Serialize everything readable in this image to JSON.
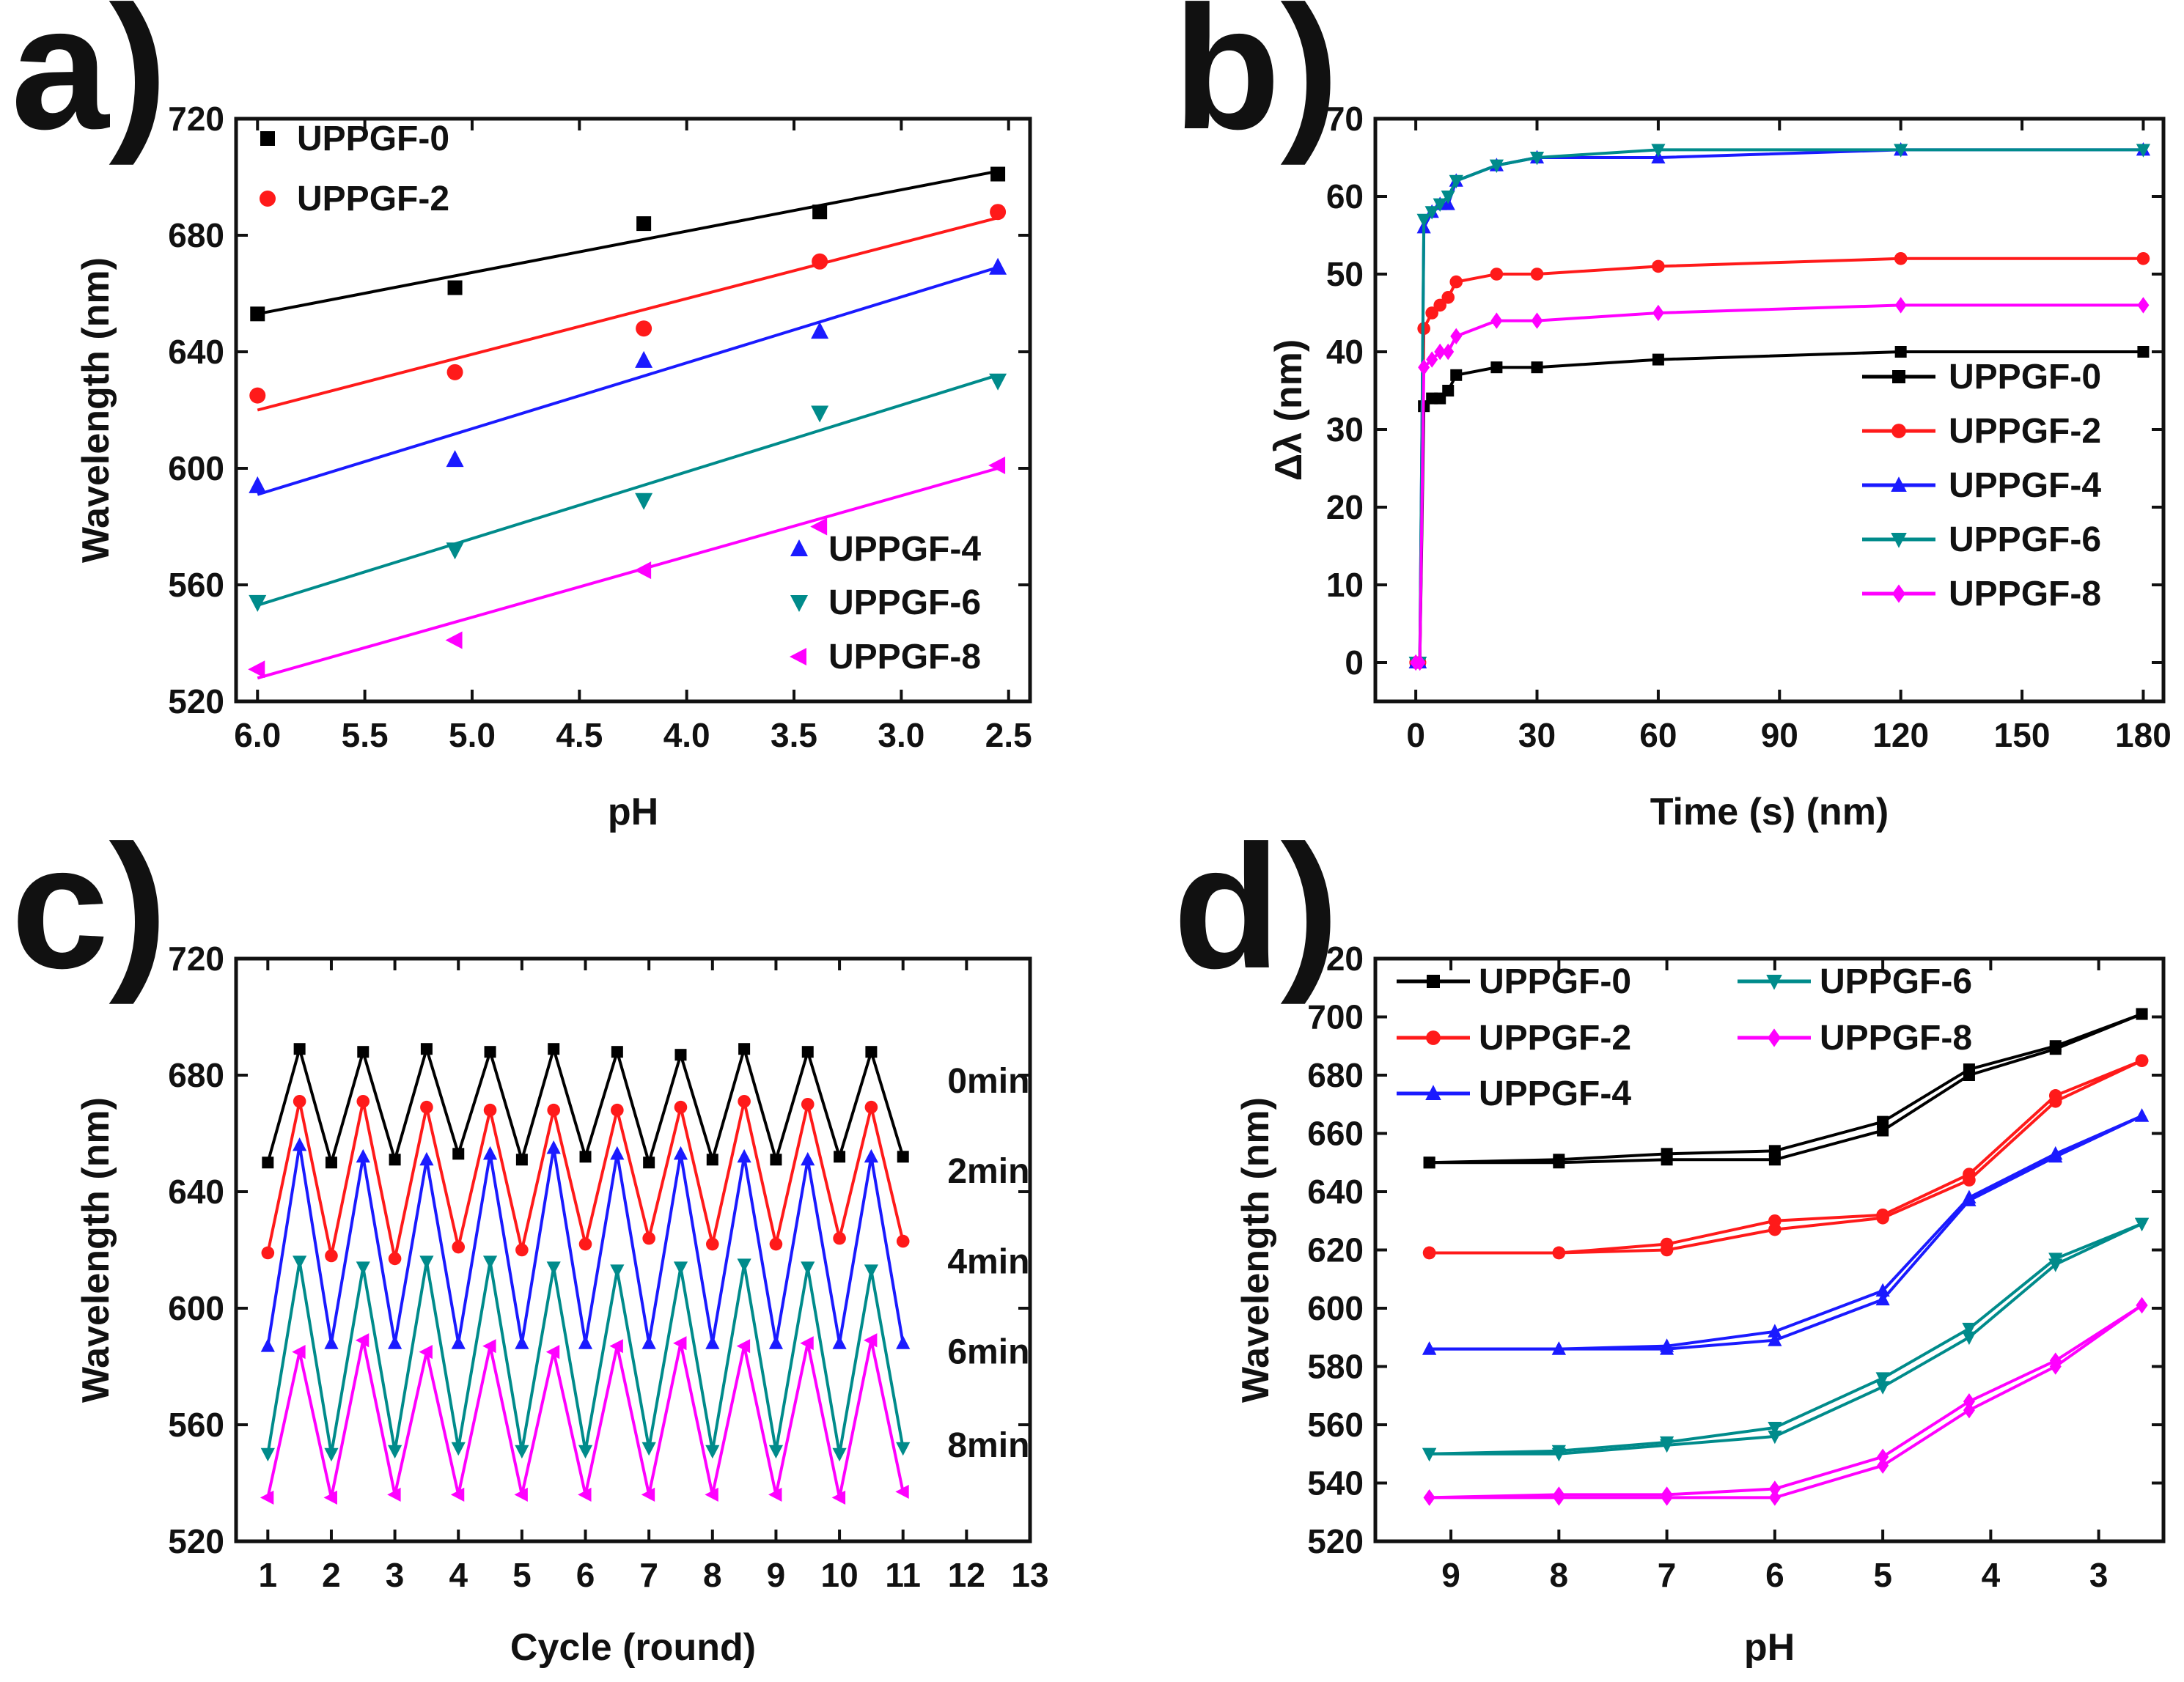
{
  "colors": {
    "UPPGF-0": "#000000",
    "UPPGF-2": "#ff1a1a",
    "UPPGF-4": "#1a1aff",
    "UPPGF-6": "#008b8b",
    "UPPGF-8": "#ff00ff"
  },
  "chart_data": [
    {
      "id": "a",
      "panel_label": "a)",
      "type": "scatter",
      "xlabel": "pH",
      "ylabel": "Wavelength (nm)",
      "xlim": [
        6.1,
        2.4
      ],
      "x_reversed": true,
      "ylim": [
        520,
        720
      ],
      "xticks": [
        6.0,
        5.5,
        5.0,
        4.5,
        4.0,
        3.5,
        3.0,
        2.5
      ],
      "xtick_labels": [
        "6.0",
        "5.5",
        "5.0",
        "4.5",
        "4.0",
        "3.5",
        "3.0",
        "2.5"
      ],
      "yticks": [
        520,
        560,
        600,
        640,
        680,
        720
      ],
      "ytick_labels": [
        "520",
        "560",
        "600",
        "640",
        "680",
        "720"
      ],
      "fit_lines": true,
      "legend": [
        {
          "label": "UPPGF-0",
          "marker": "square",
          "color": "#000000"
        },
        {
          "label": "UPPGF-2",
          "marker": "circle",
          "color": "#ff1a1a"
        },
        {
          "label": "UPPGF-4",
          "marker": "triangle-up",
          "color": "#1a1aff"
        },
        {
          "label": "UPPGF-6",
          "marker": "triangle-down",
          "color": "#008b8b"
        },
        {
          "label": "UPPGF-8",
          "marker": "triangle-left",
          "color": "#ff00ff"
        }
      ],
      "series": [
        {
          "name": "UPPGF-0",
          "marker": "square",
          "color": "#000000",
          "x": [
            6.0,
            5.08,
            4.2,
            3.38,
            2.55
          ],
          "y": [
            653,
            662,
            684,
            688,
            701
          ],
          "fit": [
            653,
            702
          ]
        },
        {
          "name": "UPPGF-2",
          "marker": "circle",
          "color": "#ff1a1a",
          "x": [
            6.0,
            5.08,
            4.2,
            3.38,
            2.55
          ],
          "y": [
            625,
            633,
            648,
            671,
            688
          ],
          "fit": [
            620,
            686
          ]
        },
        {
          "name": "UPPGF-4",
          "marker": "triangle-up",
          "color": "#1a1aff",
          "x": [
            6.0,
            5.08,
            4.2,
            3.38,
            2.55
          ],
          "y": [
            594,
            603,
            637,
            647,
            669
          ],
          "fit": [
            591,
            669
          ]
        },
        {
          "name": "UPPGF-6",
          "marker": "triangle-down",
          "color": "#008b8b",
          "x": [
            6.0,
            5.08,
            4.2,
            3.38,
            2.55
          ],
          "y": [
            554,
            572,
            589,
            619,
            630
          ],
          "fit": [
            553,
            632
          ]
        },
        {
          "name": "UPPGF-8",
          "marker": "triangle-left",
          "color": "#ff00ff",
          "x": [
            6.0,
            5.08,
            4.2,
            3.38,
            2.55
          ],
          "y": [
            531,
            541,
            565,
            580,
            601
          ],
          "fit": [
            528,
            600
          ]
        }
      ]
    },
    {
      "id": "b",
      "panel_label": "b)",
      "type": "line",
      "xlabel": "Time (s) (nm)",
      "ylabel": "Δλ (nm)",
      "xlim": [
        -10,
        185
      ],
      "ylim": [
        -5,
        70
      ],
      "xticks": [
        0,
        30,
        60,
        90,
        120,
        150,
        180
      ],
      "xtick_labels": [
        "0",
        "30",
        "60",
        "90",
        "120",
        "150",
        "180"
      ],
      "yticks": [
        0,
        10,
        20,
        30,
        40,
        50,
        60,
        70
      ],
      "ytick_labels": [
        "0",
        "10",
        "20",
        "30",
        "40",
        "50",
        "60",
        "70"
      ],
      "legend": [
        {
          "label": "UPPGF-0",
          "marker": "square",
          "color": "#000000"
        },
        {
          "label": "UPPGF-2",
          "marker": "circle",
          "color": "#ff1a1a"
        },
        {
          "label": "UPPGF-4",
          "marker": "triangle-up",
          "color": "#1a1aff"
        },
        {
          "label": "UPPGF-6",
          "marker": "triangle-down",
          "color": "#008b8b"
        },
        {
          "label": "UPPGF-8",
          "marker": "diamond",
          "color": "#ff00ff"
        }
      ],
      "series": [
        {
          "name": "UPPGF-0",
          "marker": "square",
          "color": "#000000",
          "x": [
            0,
            1,
            2,
            4,
            6,
            8,
            10,
            20,
            30,
            60,
            120,
            180
          ],
          "y": [
            0,
            0,
            33,
            34,
            34,
            35,
            37,
            38,
            38,
            39,
            40,
            40
          ]
        },
        {
          "name": "UPPGF-2",
          "marker": "circle",
          "color": "#ff1a1a",
          "x": [
            0,
            1,
            2,
            4,
            6,
            8,
            10,
            20,
            30,
            60,
            120,
            180
          ],
          "y": [
            0,
            0,
            43,
            45,
            46,
            47,
            49,
            50,
            50,
            51,
            52,
            52
          ]
        },
        {
          "name": "UPPGF-4",
          "marker": "triangle-up",
          "color": "#1a1aff",
          "x": [
            0,
            1,
            2,
            4,
            6,
            8,
            10,
            20,
            30,
            60,
            120,
            180
          ],
          "y": [
            0,
            0,
            56,
            58,
            59,
            59,
            62,
            64,
            65,
            65,
            66,
            66
          ]
        },
        {
          "name": "UPPGF-6",
          "marker": "triangle-down",
          "color": "#008b8b",
          "x": [
            0,
            1,
            2,
            4,
            6,
            8,
            10,
            20,
            30,
            60,
            120,
            180
          ],
          "y": [
            0,
            0,
            57,
            58,
            59,
            60,
            62,
            64,
            65,
            66,
            66,
            66
          ]
        },
        {
          "name": "UPPGF-8",
          "marker": "diamond",
          "color": "#ff00ff",
          "x": [
            0,
            1,
            2,
            4,
            6,
            8,
            10,
            20,
            30,
            60,
            120,
            180
          ],
          "y": [
            0,
            0,
            38,
            39,
            40,
            40,
            42,
            44,
            44,
            45,
            46,
            46
          ]
        }
      ]
    },
    {
      "id": "c",
      "panel_label": "c)",
      "type": "line",
      "xlabel": "Cycle (round)",
      "ylabel": "Wavelength (nm)",
      "xlim": [
        0.5,
        13
      ],
      "ylim": [
        520,
        720
      ],
      "xticks": [
        1,
        2,
        3,
        4,
        5,
        6,
        7,
        8,
        9,
        10,
        11,
        12,
        13
      ],
      "xtick_labels": [
        "1",
        "2",
        "3",
        "4",
        "5",
        "6",
        "7",
        "8",
        "9",
        "10",
        "11",
        "12",
        "13"
      ],
      "yticks": [
        520,
        560,
        600,
        640,
        680,
        720
      ],
      "ytick_labels": [
        "520",
        "560",
        "600",
        "640",
        "680",
        "720"
      ],
      "annotations": [
        {
          "text": "0min",
          "x": 11.7,
          "y": 678
        },
        {
          "text": "2min",
          "x": 11.7,
          "y": 647
        },
        {
          "text": "4min",
          "x": 11.7,
          "y": 616
        },
        {
          "text": "6min",
          "x": 11.7,
          "y": 585
        },
        {
          "text": "8min",
          "x": 11.7,
          "y": 553
        }
      ],
      "series": [
        {
          "name": "0min",
          "marker": "square",
          "color": "#000000",
          "x": [
            1,
            1.5,
            2,
            2.5,
            3,
            3.5,
            4,
            4.5,
            5,
            5.5,
            6,
            6.5,
            7,
            7.5,
            8,
            8.5,
            9,
            9.5,
            10,
            10.5,
            11
          ],
          "y": [
            650,
            689,
            650,
            688,
            651,
            689,
            653,
            688,
            651,
            689,
            652,
            688,
            650,
            687,
            651,
            689,
            651,
            688,
            652,
            688,
            652
          ]
        },
        {
          "name": "2min",
          "marker": "circle",
          "color": "#ff1a1a",
          "x": [
            1,
            1.5,
            2,
            2.5,
            3,
            3.5,
            4,
            4.5,
            5,
            5.5,
            6,
            6.5,
            7,
            7.5,
            8,
            8.5,
            9,
            9.5,
            10,
            10.5,
            11
          ],
          "y": [
            619,
            671,
            618,
            671,
            617,
            669,
            621,
            668,
            620,
            668,
            622,
            668,
            624,
            669,
            622,
            671,
            622,
            670,
            624,
            669,
            623
          ]
        },
        {
          "name": "4min",
          "marker": "triangle-up",
          "color": "#1a1aff",
          "x": [
            1,
            1.5,
            2,
            2.5,
            3,
            3.5,
            4,
            4.5,
            5,
            5.5,
            6,
            6.5,
            7,
            7.5,
            8,
            8.5,
            9,
            9.5,
            10,
            10.5,
            11
          ],
          "y": [
            587,
            656,
            588,
            652,
            588,
            651,
            588,
            653,
            588,
            655,
            588,
            653,
            588,
            653,
            588,
            652,
            588,
            651,
            588,
            652,
            588
          ]
        },
        {
          "name": "6min",
          "marker": "triangle-down",
          "color": "#008b8b",
          "x": [
            1,
            1.5,
            2,
            2.5,
            3,
            3.5,
            4,
            4.5,
            5,
            5.5,
            6,
            6.5,
            7,
            7.5,
            8,
            8.5,
            9,
            9.5,
            10,
            10.5,
            11
          ],
          "y": [
            550,
            616,
            550,
            614,
            551,
            616,
            552,
            616,
            551,
            614,
            551,
            613,
            552,
            614,
            551,
            615,
            551,
            614,
            550,
            613,
            552
          ]
        },
        {
          "name": "8min",
          "marker": "triangle-left",
          "color": "#ff00ff",
          "x": [
            1,
            1.5,
            2,
            2.5,
            3,
            3.5,
            4,
            4.5,
            5,
            5.5,
            6,
            6.5,
            7,
            7.5,
            8,
            8.5,
            9,
            9.5,
            10,
            10.5,
            11
          ],
          "y": [
            535,
            585,
            535,
            589,
            536,
            585,
            536,
            587,
            536,
            585,
            536,
            587,
            536,
            588,
            536,
            587,
            536,
            588,
            535,
            589,
            537
          ]
        }
      ]
    },
    {
      "id": "d",
      "panel_label": "d)",
      "type": "line",
      "xlabel": "pH",
      "ylabel": "Wavelength (nm)",
      "xlim": [
        9.7,
        2.4
      ],
      "x_reversed": true,
      "ylim": [
        520,
        720
      ],
      "xticks": [
        9,
        8,
        7,
        6,
        5,
        4,
        3
      ],
      "xtick_labels": [
        "9",
        "8",
        "7",
        "6",
        "5",
        "4",
        "3"
      ],
      "yticks": [
        520,
        540,
        560,
        580,
        600,
        620,
        640,
        660,
        680,
        700,
        720
      ],
      "ytick_labels": [
        "520",
        "540",
        "560",
        "580",
        "600",
        "620",
        "640",
        "660",
        "680",
        "700",
        "720"
      ],
      "legend": [
        {
          "label": "UPPGF-0",
          "marker": "square",
          "color": "#000000"
        },
        {
          "label": "UPPGF-2",
          "marker": "circle",
          "color": "#ff1a1a"
        },
        {
          "label": "UPPGF-4",
          "marker": "triangle-up",
          "color": "#1a1aff"
        },
        {
          "label": "UPPGF-6",
          "marker": "triangle-down",
          "color": "#008b8b"
        },
        {
          "label": "UPPGF-8",
          "marker": "diamond",
          "color": "#ff00ff"
        }
      ],
      "series": [
        {
          "name": "UPPGF-0",
          "marker": "square",
          "color": "#000000",
          "x": [
            9.2,
            8.0,
            7.0,
            6.0,
            5.0,
            4.2,
            3.4,
            2.6
          ],
          "y_up": [
            650,
            650,
            651,
            651,
            661,
            680,
            689,
            701
          ],
          "y_down": [
            650,
            651,
            653,
            654,
            664,
            682,
            690,
            701
          ]
        },
        {
          "name": "UPPGF-2",
          "marker": "circle",
          "color": "#ff1a1a",
          "x": [
            9.2,
            8.0,
            7.0,
            6.0,
            5.0,
            4.2,
            3.4,
            2.6
          ],
          "y_up": [
            619,
            619,
            620,
            627,
            631,
            644,
            671,
            685
          ],
          "y_down": [
            619,
            619,
            622,
            630,
            632,
            646,
            673,
            685
          ]
        },
        {
          "name": "UPPGF-4",
          "marker": "triangle-up",
          "color": "#1a1aff",
          "x": [
            9.2,
            8.0,
            7.0,
            6.0,
            5.0,
            4.2,
            3.4,
            2.6
          ],
          "y_up": [
            586,
            586,
            586,
            589,
            603,
            637,
            652,
            666
          ],
          "y_down": [
            586,
            586,
            587,
            592,
            606,
            638,
            653,
            666
          ]
        },
        {
          "name": "UPPGF-6",
          "marker": "triangle-down",
          "color": "#008b8b",
          "x": [
            9.2,
            8.0,
            7.0,
            6.0,
            5.0,
            4.2,
            3.4,
            2.6
          ],
          "y_up": [
            550,
            550,
            553,
            556,
            573,
            590,
            615,
            629
          ],
          "y_down": [
            550,
            551,
            554,
            559,
            576,
            593,
            617,
            629
          ]
        },
        {
          "name": "UPPGF-8",
          "marker": "diamond",
          "color": "#ff00ff",
          "x": [
            9.2,
            8.0,
            7.0,
            6.0,
            5.0,
            4.2,
            3.4,
            2.6
          ],
          "y_up": [
            535,
            535,
            535,
            535,
            546,
            565,
            580,
            601
          ],
          "y_down": [
            535,
            536,
            536,
            538,
            549,
            568,
            582,
            601
          ]
        }
      ]
    }
  ]
}
